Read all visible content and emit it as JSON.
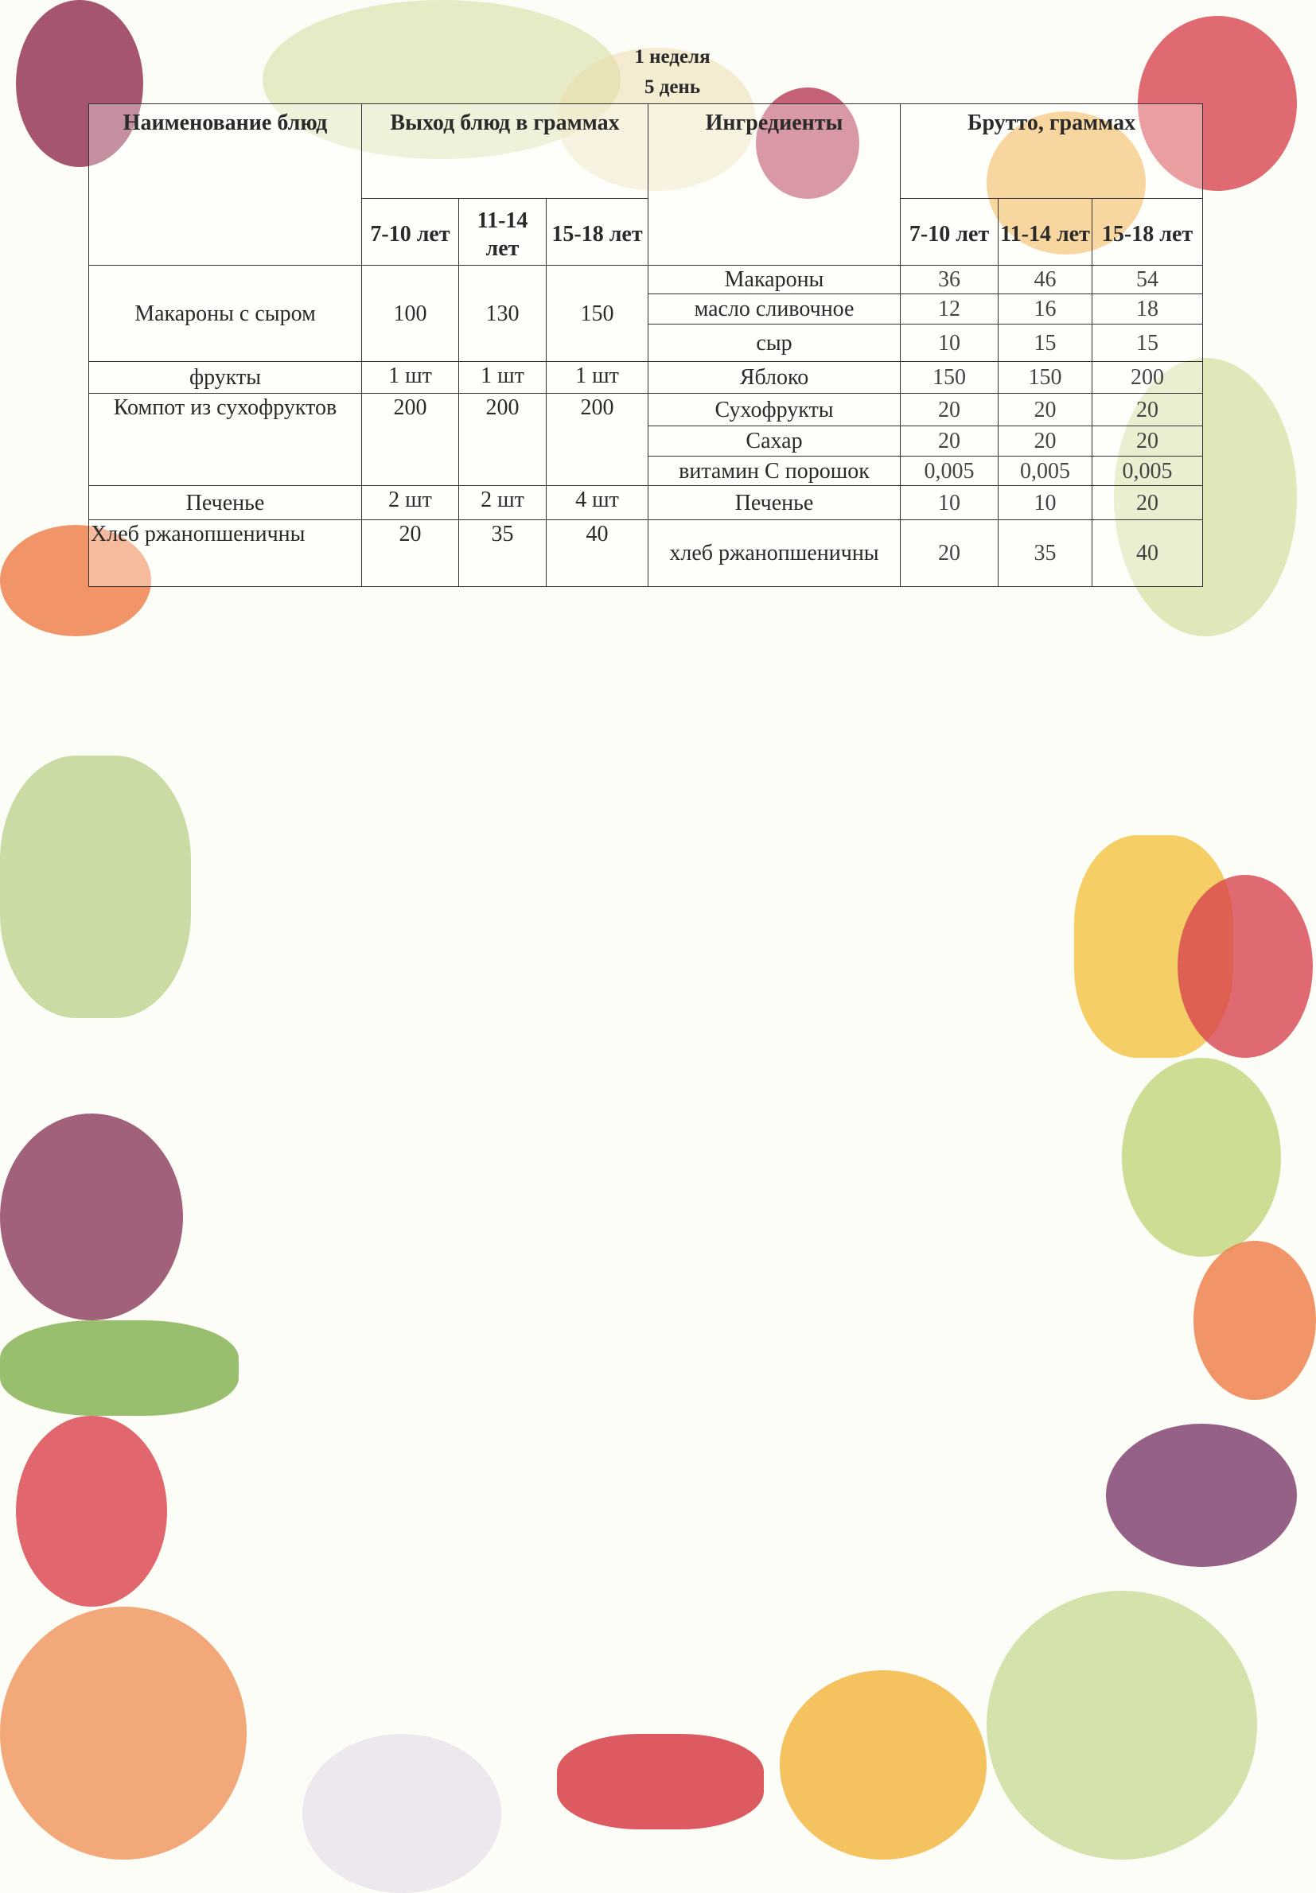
{
  "heading": {
    "week": "1 неделя",
    "day": "5 день"
  },
  "headers": {
    "dish": "Наименование блюд",
    "output": "Выход блюд в граммах",
    "ingredients": "Ингредиенты",
    "gross": "Брутто, граммах",
    "ages": [
      "7-10 лет",
      "11-14 лет",
      "15-18 лет"
    ]
  },
  "dishes": [
    {
      "name": "Макароны с сыром",
      "output": [
        "100",
        "130",
        "150"
      ],
      "ingredients": [
        {
          "name": "Макароны",
          "gross": [
            "36",
            "46",
            "54"
          ]
        },
        {
          "name": "масло сливочное",
          "gross": [
            "12",
            "16",
            "18"
          ]
        },
        {
          "name": "сыр",
          "gross": [
            "10",
            "15",
            "15"
          ]
        }
      ]
    },
    {
      "name": "фрукты",
      "output": [
        "1 шт",
        "1 шт",
        "1 шт"
      ],
      "ingredients": [
        {
          "name": "Яблоко",
          "gross": [
            "150",
            "150",
            "200"
          ]
        }
      ]
    },
    {
      "name": "Компот из сухофруктов",
      "output": [
        "200",
        "200",
        "200"
      ],
      "ingredients": [
        {
          "name": "Сухофрукты",
          "gross": [
            "20",
            "20",
            "20"
          ]
        },
        {
          "name": "Сахар",
          "gross": [
            "20",
            "20",
            "20"
          ]
        },
        {
          "name": "витамин С порошок",
          "gross": [
            "0,005",
            "0,005",
            "0,005"
          ]
        }
      ]
    },
    {
      "name": "Печенье",
      "output": [
        "2 шт",
        "2 шт",
        "4 шт"
      ],
      "ingredients": [
        {
          "name": "Печенье",
          "gross": [
            "10",
            "10",
            "20"
          ]
        }
      ]
    },
    {
      "name": "Хлеб ржанопшеничны",
      "output": [
        "20",
        "35",
        "40"
      ],
      "ingredients": [
        {
          "name": "хлеб ржанопшеничны",
          "gross": [
            "20",
            "35",
            "40"
          ]
        }
      ]
    }
  ],
  "colors": {
    "tomato": "#d8454f",
    "onion": "#8e2a4a",
    "pepper_yellow": "#f2b33a",
    "greens": "#a9c46a",
    "carrot": "#ee7a45",
    "cabbage": "#8a3a5a"
  }
}
